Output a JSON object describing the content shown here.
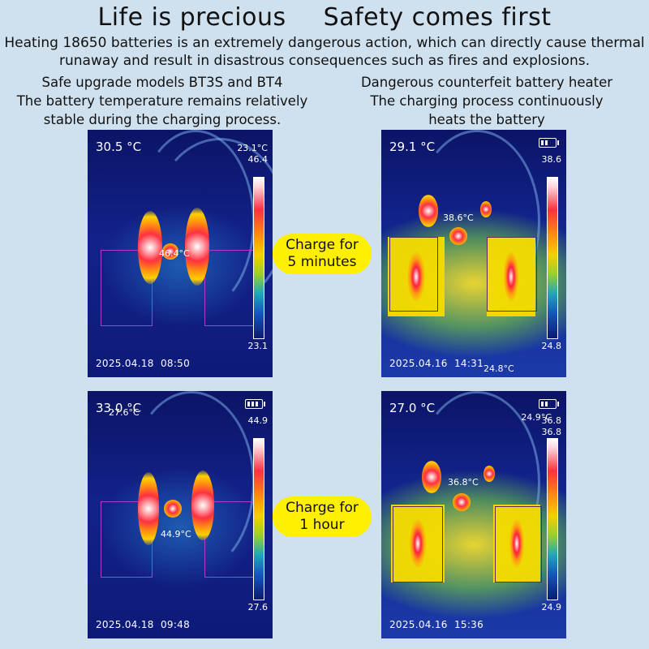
{
  "headline": {
    "left": "Life is precious",
    "right": "Safety comes first"
  },
  "intro": {
    "line1": "Heating 18650 batteries is an extremely dangerous action, which can directly cause thermal",
    "line2": "runaway and result in disastrous consequences such as fires and explosions."
  },
  "left_column": {
    "title": "Safe upgrade models BT3S and BT4",
    "desc_line1": "The battery temperature remains relatively",
    "desc_line2": "stable during the charging process."
  },
  "right_column": {
    "title": "Dangerous counterfeit battery heater",
    "desc_line1": "The charging process continuously",
    "desc_line2": "heats the battery"
  },
  "labels": {
    "charge_5_line1": "Charge for",
    "charge_5_line2": "5 minutes",
    "charge_1h_line1": "Charge for",
    "charge_1h_line2": "1 hour"
  },
  "thermal_images": {
    "top_left": {
      "spot_temp": "30.5 °C",
      "extra_temp": "23.1°C",
      "scale_max": "46.4",
      "scale_min": "23.1",
      "hotspot_label": "46.4°C",
      "date": "2025.04.18",
      "time": "08:50"
    },
    "top_right": {
      "spot_temp": "29.1 °C",
      "scale_max": "38.6",
      "scale_min": "24.8",
      "hotspot_label": "38.6°C",
      "ambient_label": "24.8°C",
      "date": "2025.04.16",
      "time": "14:31"
    },
    "bottom_left": {
      "spot_temp": "33.0 °C",
      "overlap_text": "27.6°C",
      "scale_max": "44.9",
      "scale_min": "27.6",
      "hotspot_label": "44.9°C",
      "date": "2025.04.18",
      "time": "09:48"
    },
    "bottom_right": {
      "spot_temp": "27.0 °C",
      "extra_temp": "24.9°C",
      "overlap_text": "36.8",
      "scale_max": "36.8",
      "scale_min": "24.9",
      "hotspot_label": "36.8°C",
      "date": "2025.04.16",
      "time": "15:36"
    }
  },
  "colors": {
    "background": "#cfe0ef",
    "pill": "#ffef00",
    "thermal_base": "#13228a"
  }
}
